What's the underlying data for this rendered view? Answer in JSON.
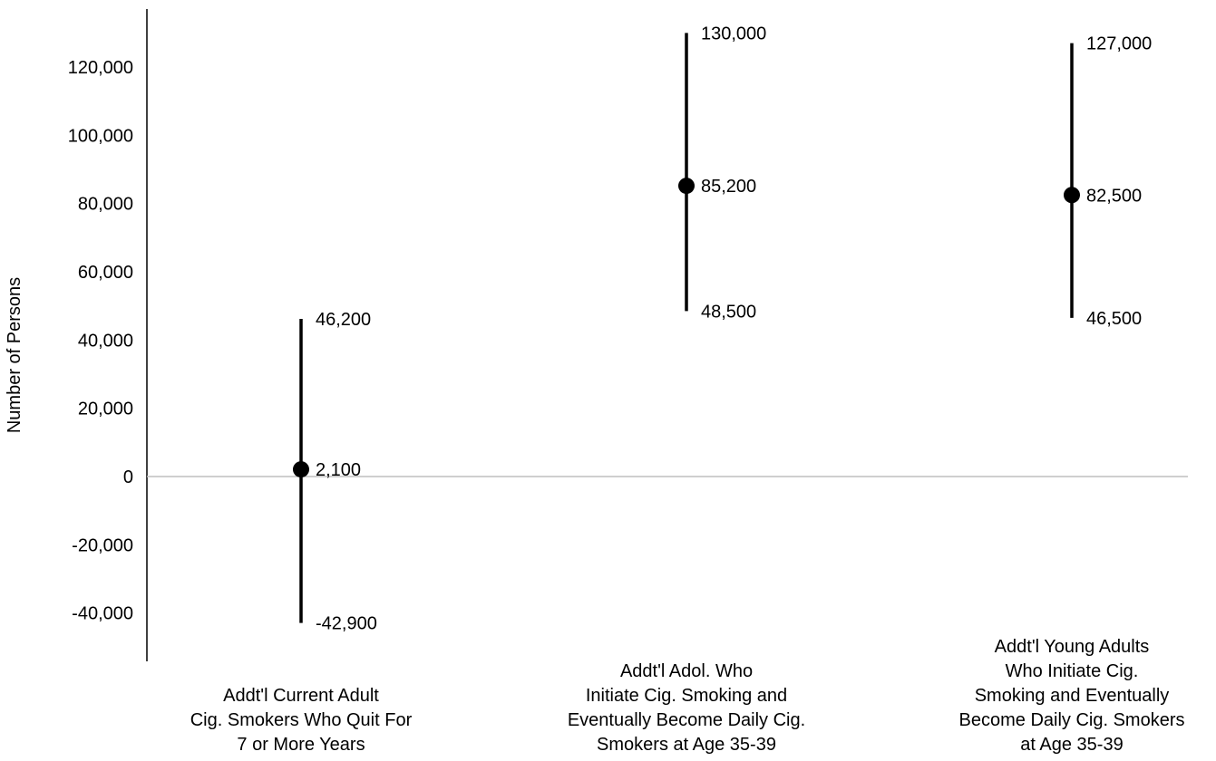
{
  "chart_data": {
    "type": "scatter",
    "ylabel": "Number of Persons",
    "ylim": [
      -55000,
      137000
    ],
    "yticks": [
      -40000,
      -20000,
      0,
      20000,
      40000,
      60000,
      80000,
      100000,
      120000
    ],
    "ytick_labels": [
      "-40,000",
      "-20,000",
      "0",
      "20,000",
      "40,000",
      "60,000",
      "80,000",
      "100,000",
      "120,000"
    ],
    "zero_line": true,
    "grid": false,
    "legend": "none",
    "categories": [
      [
        "Addt'l Current Adult",
        "Cig. Smokers Who Quit For",
        "7 or More Years"
      ],
      [
        "Addt'l Adol. Who",
        "Initiate Cig. Smoking and",
        "Eventually Become Daily Cig.",
        "Smokers at Age 35-39"
      ],
      [
        "Addt'l Young Adults",
        "Who Initiate Cig.",
        "Smoking and Eventually",
        "Become Daily Cig. Smokers",
        "at Age 35-39"
      ]
    ],
    "series": [
      {
        "values": [
          2100,
          85200,
          82500
        ],
        "lower": [
          -42900,
          48500,
          46500
        ],
        "upper": [
          46200,
          130000,
          127000
        ],
        "value_labels": [
          "2,100",
          "85,200",
          "82,500"
        ],
        "lower_labels": [
          "-42,900",
          "48,500",
          "46,500"
        ],
        "upper_labels": [
          "46,200",
          "130,000",
          "127,000"
        ]
      }
    ],
    "colors": {
      "marker": "#000000",
      "interval": "#000000",
      "axis": "#000000",
      "zero_line": "#bfbfbf",
      "text": "#000000"
    }
  }
}
